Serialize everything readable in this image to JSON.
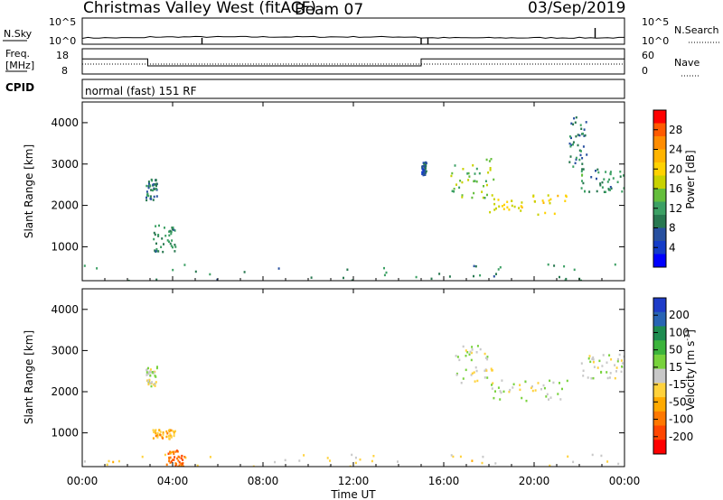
{
  "header": {
    "station": "Christmas Valley West (fitACF)",
    "beam": "Beam 07",
    "date": "03/Sep/2019"
  },
  "noise_panel": {
    "left_label": "N.Sky",
    "right_label": "N.Search",
    "left_ticks": [
      "10^5",
      "10^0"
    ],
    "right_ticks": [
      "10^5",
      "10^0"
    ]
  },
  "freq_panel": {
    "left_label_1": "Freq.",
    "left_label_2": "[MHz]",
    "right_label": "Nave",
    "left_ticks": [
      "18",
      "8"
    ],
    "right_ticks": [
      "60",
      "0"
    ]
  },
  "cpid_panel": {
    "label": "CPID",
    "mode_text": "normal (fast) 151 RF"
  },
  "power_panel": {
    "ylabel": "Slant Range [km]",
    "yticks": [
      "4000",
      "3000",
      "2000",
      "1000"
    ],
    "colorbar_label": "Power [dB]",
    "colorbar_ticks": [
      "28",
      "24",
      "20",
      "16",
      "12",
      "8",
      "4"
    ],
    "colors": [
      "#ff0000",
      "#ff5a00",
      "#ff8c00",
      "#ffb400",
      "#ffd200",
      "#c8d200",
      "#64be3c",
      "#3ca064",
      "#287850",
      "#2850a0",
      "#143cc8",
      "#0000ff"
    ]
  },
  "velocity_panel": {
    "ylabel": "Slant Range [km]",
    "yticks": [
      "4000",
      "3000",
      "2000",
      "1000"
    ],
    "colorbar_label": "Velocity [m s",
    "colorbar_label_sup": "-1",
    "colorbar_label_end": "]",
    "colorbar_ticks": [
      "200",
      "100",
      "50",
      "15",
      "-15",
      "-50",
      "-100",
      "-200"
    ],
    "colors": [
      "#1e3cc8",
      "#2864b4",
      "#1e8c50",
      "#3cb43c",
      "#78d23c",
      "#c8c8c8",
      "#ffd23c",
      "#ffaa00",
      "#ff7800",
      "#ff4600",
      "#ff0000"
    ]
  },
  "xaxis": {
    "label": "Time UT",
    "ticks": [
      "00:00",
      "04:00",
      "08:00",
      "12:00",
      "16:00",
      "20:00",
      "00:00"
    ]
  },
  "chart_data": [
    {
      "type": "line",
      "panel": "frequency",
      "x_unit": "hours UT",
      "xlim": [
        0,
        24
      ],
      "ylim": [
        8,
        18
      ],
      "series": [
        {
          "values_x": [
            0,
            2.9,
            2.9,
            15.0,
            15.0,
            15.35,
            15.35,
            24
          ],
          "values_y": [
            14,
            14,
            11.2,
            11.2,
            14,
            14,
            14,
            14
          ]
        }
      ]
    },
    {
      "type": "heatmap",
      "panel": "power",
      "x_unit": "hours UT",
      "xlim": [
        0,
        24
      ],
      "ylim": [
        180,
        4500
      ],
      "colorbar_range": [
        0,
        30
      ],
      "echo_regions": [
        {
          "t0": 0.0,
          "t1": 23.9,
          "r0": 200,
          "r1": 600,
          "value": 10
        },
        {
          "t0": 2.8,
          "t1": 3.3,
          "r0": 2150,
          "r1": 2650,
          "value": 8
        },
        {
          "t0": 3.1,
          "t1": 4.1,
          "r0": 880,
          "r1": 1580,
          "value": 10
        },
        {
          "t0": 15.0,
          "t1": 15.2,
          "r0": 2750,
          "r1": 3100,
          "value": 6
        },
        {
          "t0": 16.2,
          "t1": 18.2,
          "r0": 2200,
          "r1": 3150,
          "value": 14
        },
        {
          "t0": 18.0,
          "t1": 21.5,
          "r0": 1800,
          "r1": 2300,
          "value": 18
        },
        {
          "t0": 22.0,
          "t1": 24.0,
          "r0": 2350,
          "r1": 2950,
          "value": 10
        },
        {
          "t0": 21.5,
          "t1": 22.3,
          "r0": 2900,
          "r1": 4200,
          "value": 8
        }
      ]
    },
    {
      "type": "heatmap",
      "panel": "velocity",
      "x_unit": "hours UT",
      "xlim": [
        0,
        24
      ],
      "ylim": [
        180,
        4500
      ],
      "colorbar_range": [
        -250,
        250
      ],
      "echo_regions": [
        {
          "t0": 0.0,
          "t1": 23.9,
          "r0": 200,
          "r1": 500,
          "value": -30
        },
        {
          "t0": 3.7,
          "t1": 4.5,
          "r0": 200,
          "r1": 600,
          "value": -150
        },
        {
          "t0": 3.1,
          "t1": 4.1,
          "r0": 880,
          "r1": 1100,
          "value": -80
        },
        {
          "t0": 2.8,
          "t1": 3.3,
          "r0": 2150,
          "r1": 2650,
          "value": 0
        },
        {
          "t0": 16.2,
          "t1": 18.2,
          "r0": 2200,
          "r1": 3150,
          "value": 0
        },
        {
          "t0": 18.0,
          "t1": 21.5,
          "r0": 1800,
          "r1": 2300,
          "value": 0
        },
        {
          "t0": 22.0,
          "t1": 24.0,
          "r0": 2350,
          "r1": 2950,
          "value": 0
        }
      ]
    }
  ]
}
